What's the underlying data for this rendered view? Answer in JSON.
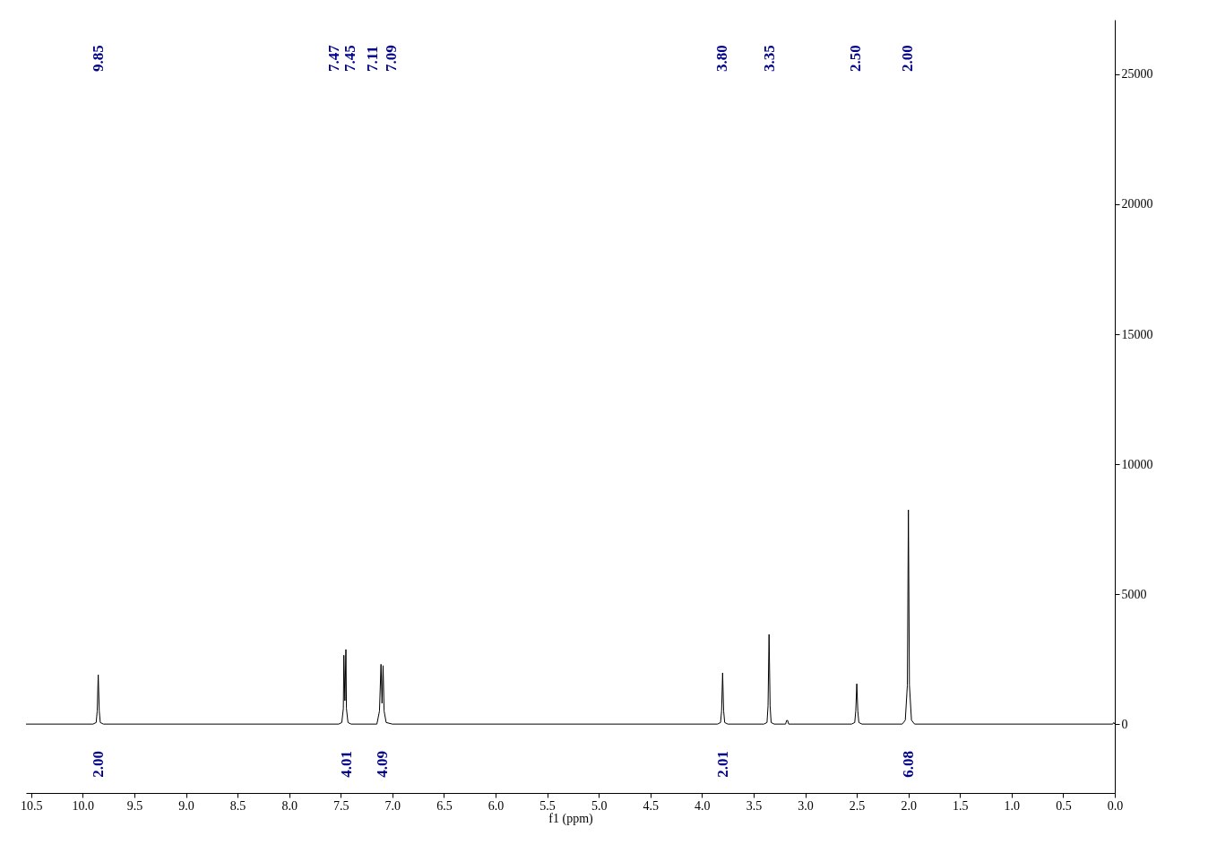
{
  "chart_data": {
    "type": "line",
    "xlabel": "f1 (ppm)",
    "xlim": [
      10.55,
      0
    ],
    "xticks": [
      10.5,
      {
        "value": 10,
        "label": "10.0"
      },
      9.5,
      {
        "value": 9,
        "label": "9.0"
      },
      8.5,
      {
        "value": 8,
        "label": "8.0"
      },
      7.5,
      {
        "value": 7,
        "label": "7.0"
      },
      6.5,
      {
        "value": 6,
        "label": "6.0"
      },
      5.5,
      {
        "value": 5,
        "label": "5.0"
      },
      4.5,
      {
        "value": 4,
        "label": "4.0"
      },
      3.5,
      {
        "value": 3,
        "label": "3.0"
      },
      2.5,
      {
        "value": 2,
        "label": "2.0"
      },
      1.5,
      {
        "value": 1,
        "label": "1.0"
      },
      0.5,
      {
        "value": 0,
        "label": "0.0"
      }
    ],
    "ylim": [
      -2650,
      27100
    ],
    "yticks": [
      0,
      5000,
      10000,
      15000,
      20000,
      25000
    ],
    "grid": false,
    "line_style": "solid",
    "marker": "none",
    "series": [
      {
        "color": "#000000",
        "x": [
          10.55,
          9.9,
          9.87,
          9.86,
          9.85,
          9.84,
          9.83,
          9.8,
          7.52,
          7.49,
          7.475,
          7.47,
          7.46,
          7.45,
          7.445,
          7.43,
          7.4,
          7.15,
          7.125,
          7.11,
          7.1,
          7.09,
          7.08,
          7.06,
          7.0,
          3.85,
          3.82,
          3.81,
          3.8,
          3.79,
          3.78,
          3.75,
          3.4,
          3.37,
          3.36,
          3.35,
          3.34,
          3.33,
          3.3,
          3.19,
          3.18,
          3.17,
          3.16,
          2.55,
          2.52,
          2.51,
          2.5,
          2.49,
          2.48,
          2.45,
          2.06,
          2.03,
          2.01,
          2.0,
          1.99,
          1.97,
          1.94,
          0.02,
          0.01,
          0.0
        ],
        "values": [
          0,
          0,
          60,
          500,
          1900,
          500,
          60,
          0,
          0,
          60,
          600,
          2650,
          900,
          2870,
          600,
          60,
          0,
          0,
          500,
          2300,
          800,
          2250,
          500,
          60,
          0,
          0,
          60,
          500,
          1970,
          500,
          60,
          0,
          0,
          60,
          700,
          3450,
          700,
          60,
          0,
          0,
          140,
          140,
          0,
          0,
          60,
          500,
          1550,
          500,
          60,
          0,
          0,
          150,
          1500,
          8240,
          1500,
          150,
          0,
          0,
          60,
          0
        ]
      }
    ],
    "annotations": [
      "9.85",
      "7.47",
      "7.45",
      "7.11",
      "7.09",
      "3.80",
      "3.35",
      "2.50",
      "2.00",
      "2.00",
      "4.01",
      "4.09",
      "2.01",
      "6.08"
    ]
  }
}
